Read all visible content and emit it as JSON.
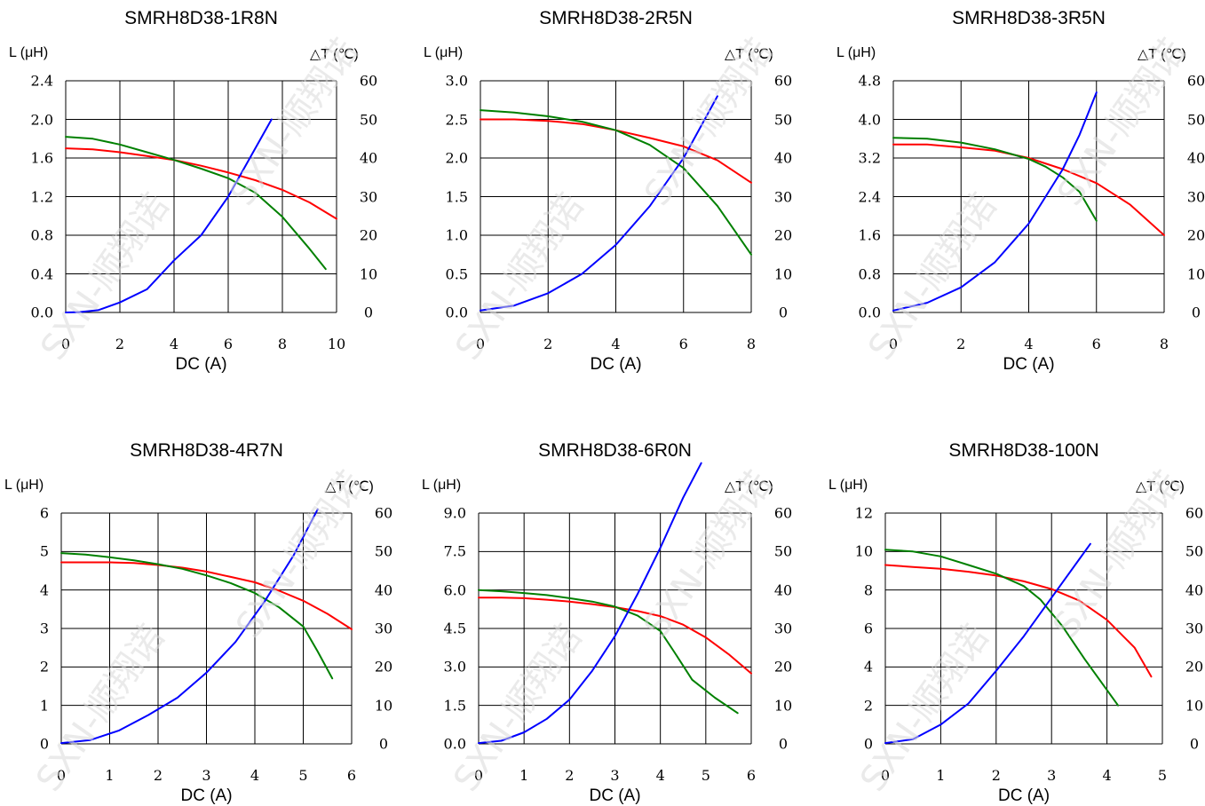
{
  "watermark_text": "SXN-顺翔诺",
  "colors": {
    "red": "#ff0000",
    "green": "#008000",
    "blue": "#0000ff",
    "grid": "#000000",
    "watermark": "#d9d9d9"
  },
  "chart_data": [
    {
      "type": "line",
      "title": "SMRH8D38-1R8N",
      "ylabel_left": "L (μH)",
      "ylabel_right": "△T (℃)",
      "xlabel": "DC (A)",
      "x_ticks": [
        "0",
        "2",
        "4",
        "6",
        "8",
        "10"
      ],
      "y_left_ticks": [
        "0.0",
        "0.4",
        "0.8",
        "1.2",
        "1.6",
        "2.0",
        "2.4"
      ],
      "y_right_ticks": [
        "0",
        "10",
        "20",
        "30",
        "40",
        "50",
        "60"
      ],
      "xlim": [
        0,
        10
      ],
      "ylim_left": [
        0,
        2.4
      ],
      "ylim_right": [
        0,
        60
      ],
      "grid": true,
      "series": [
        {
          "color": "red",
          "axis": "left",
          "x": [
            0,
            1,
            2,
            3,
            4,
            5,
            6,
            7,
            8,
            9,
            10
          ],
          "y": [
            1.7,
            1.69,
            1.66,
            1.62,
            1.58,
            1.52,
            1.45,
            1.37,
            1.27,
            1.14,
            0.97
          ]
        },
        {
          "color": "green",
          "axis": "left",
          "x": [
            0,
            1,
            2,
            3,
            4,
            5,
            6,
            7,
            8,
            9,
            9.6
          ],
          "y": [
            1.82,
            1.8,
            1.74,
            1.66,
            1.58,
            1.49,
            1.39,
            1.24,
            0.99,
            0.66,
            0.45
          ]
        },
        {
          "color": "blue",
          "axis": "right",
          "x": [
            0,
            0.5,
            1.2,
            2,
            3,
            4,
            5,
            6,
            6.8,
            7.6
          ],
          "y": [
            0,
            0.1,
            0.6,
            2.6,
            6,
            13.5,
            20,
            30,
            40,
            50
          ]
        }
      ]
    },
    {
      "type": "line",
      "title": "SMRH8D38-2R5N",
      "ylabel_left": "L (μH)",
      "ylabel_right": "△T (℃)",
      "xlabel": "DC (A)",
      "x_ticks": [
        "0",
        "2",
        "4",
        "6",
        "8"
      ],
      "y_left_ticks": [
        "0.0",
        "0.5",
        "1.0",
        "1.5",
        "2.0",
        "2.5",
        "3.0"
      ],
      "y_right_ticks": [
        "0",
        "10",
        "20",
        "30",
        "40",
        "50",
        "60"
      ],
      "xlim": [
        0,
        8
      ],
      "ylim_left": [
        0,
        3.0
      ],
      "ylim_right": [
        0,
        60
      ],
      "grid": true,
      "series": [
        {
          "color": "red",
          "axis": "left",
          "x": [
            0,
            1,
            2,
            3,
            4,
            5,
            6,
            7,
            8
          ],
          "y": [
            2.5,
            2.5,
            2.48,
            2.44,
            2.36,
            2.26,
            2.15,
            1.97,
            1.68
          ]
        },
        {
          "color": "green",
          "axis": "left",
          "x": [
            0,
            1,
            2,
            3,
            4,
            5,
            6,
            7,
            8
          ],
          "y": [
            2.62,
            2.59,
            2.54,
            2.47,
            2.36,
            2.17,
            1.87,
            1.38,
            0.75
          ]
        },
        {
          "color": "blue",
          "axis": "right",
          "x": [
            0,
            1,
            2,
            3,
            4,
            5,
            6,
            7
          ],
          "y": [
            0.5,
            1.8,
            5,
            10,
            17.5,
            27.5,
            40,
            56
          ]
        }
      ]
    },
    {
      "type": "line",
      "title": "SMRH8D38-3R5N",
      "ylabel_left": "L (μH)",
      "ylabel_right": "△T (℃)",
      "xlabel": "DC (A)",
      "x_ticks": [
        "0",
        "2",
        "4",
        "6",
        "8"
      ],
      "y_left_ticks": [
        "0.0",
        "0.8",
        "1.6",
        "2.4",
        "3.2",
        "4.0",
        "4.8"
      ],
      "y_right_ticks": [
        "0",
        "10",
        "20",
        "30",
        "40",
        "50",
        "60"
      ],
      "xlim": [
        0,
        8
      ],
      "ylim_left": [
        0,
        4.8
      ],
      "ylim_right": [
        0,
        60
      ],
      "grid": true,
      "series": [
        {
          "color": "red",
          "axis": "left",
          "x": [
            0,
            1,
            2,
            3,
            4,
            5,
            6,
            7,
            8
          ],
          "y": [
            3.48,
            3.48,
            3.42,
            3.35,
            3.2,
            2.97,
            2.68,
            2.23,
            1.6
          ]
        },
        {
          "color": "green",
          "axis": "left",
          "x": [
            0,
            1,
            2,
            3,
            4,
            4.5,
            5,
            5.5,
            6
          ],
          "y": [
            3.62,
            3.6,
            3.52,
            3.38,
            3.18,
            3.02,
            2.8,
            2.5,
            1.9
          ]
        },
        {
          "color": "blue",
          "axis": "right",
          "x": [
            0,
            1,
            2,
            3,
            4,
            5,
            5.5,
            6
          ],
          "y": [
            0.5,
            2.5,
            6.5,
            13,
            23,
            37,
            46,
            57
          ]
        }
      ]
    },
    {
      "type": "line",
      "title": "SMRH8D38-4R7N",
      "ylabel_left": "L (μH)",
      "ylabel_right": "△T (℃)",
      "xlabel": "DC (A)",
      "x_ticks": [
        "0",
        "1",
        "2",
        "3",
        "4",
        "5",
        "6"
      ],
      "y_left_ticks": [
        "0",
        "1",
        "2",
        "3",
        "4",
        "5",
        "6"
      ],
      "y_right_ticks": [
        "0",
        "10",
        "20",
        "30",
        "40",
        "50",
        "60"
      ],
      "xlim": [
        0,
        6
      ],
      "ylim_left": [
        0,
        6
      ],
      "ylim_right": [
        0,
        60
      ],
      "grid": true,
      "series": [
        {
          "color": "red",
          "axis": "left",
          "x": [
            0,
            0.5,
            1,
            1.5,
            2,
            2.5,
            3,
            3.5,
            4,
            4.5,
            5,
            5.5,
            6
          ],
          "y": [
            4.72,
            4.72,
            4.72,
            4.7,
            4.65,
            4.58,
            4.48,
            4.34,
            4.2,
            3.98,
            3.72,
            3.38,
            2.98
          ]
        },
        {
          "color": "green",
          "axis": "left",
          "x": [
            0,
            0.5,
            1,
            1.5,
            2,
            2.5,
            3,
            3.5,
            4,
            4.5,
            5,
            5.3,
            5.6
          ],
          "y": [
            4.96,
            4.92,
            4.85,
            4.77,
            4.67,
            4.55,
            4.38,
            4.18,
            3.92,
            3.55,
            3.05,
            2.4,
            1.7
          ]
        },
        {
          "color": "blue",
          "axis": "right",
          "x": [
            0,
            0.6,
            1.2,
            1.8,
            2.4,
            3,
            3.6,
            4.2,
            4.8,
            5.3
          ],
          "y": [
            0.2,
            1,
            3.5,
            7.5,
            12,
            18.5,
            26.5,
            37,
            49,
            61
          ]
        }
      ]
    },
    {
      "type": "line",
      "title": "SMRH8D38-6R0N",
      "ylabel_left": "L (μH)",
      "ylabel_right": "△T (℃)",
      "xlabel": "DC (A)",
      "x_ticks": [
        "0",
        "1",
        "2",
        "3",
        "4",
        "5",
        "6"
      ],
      "y_left_ticks": [
        "0.0",
        "1.5",
        "3.0",
        "4.5",
        "6.0",
        "7.5",
        "9.0"
      ],
      "y_right_ticks": [
        "0",
        "10",
        "20",
        "30",
        "40",
        "50",
        "60"
      ],
      "xlim": [
        0,
        6
      ],
      "ylim_left": [
        0,
        9.0
      ],
      "ylim_right": [
        0,
        60
      ],
      "grid": true,
      "series": [
        {
          "color": "red",
          "axis": "left",
          "x": [
            0,
            0.5,
            1,
            1.5,
            2,
            2.5,
            3,
            3.5,
            4,
            4.5,
            5,
            5.5,
            6
          ],
          "y": [
            5.7,
            5.7,
            5.68,
            5.62,
            5.55,
            5.45,
            5.33,
            5.18,
            4.98,
            4.65,
            4.15,
            3.5,
            2.75
          ]
        },
        {
          "color": "green",
          "axis": "left",
          "x": [
            0,
            0.5,
            1,
            1.5,
            2,
            2.5,
            3,
            3.5,
            4,
            4.3,
            4.7,
            5.2,
            5.7
          ],
          "y": [
            6.0,
            5.95,
            5.88,
            5.8,
            5.68,
            5.55,
            5.35,
            5.0,
            4.4,
            3.6,
            2.5,
            1.8,
            1.2
          ]
        },
        {
          "color": "blue",
          "axis": "right",
          "x": [
            0,
            0.5,
            1,
            1.5,
            2,
            2.5,
            3,
            3.5,
            4,
            4.5,
            4.9
          ],
          "y": [
            0.2,
            0.8,
            3,
            6.5,
            11.5,
            19,
            28,
            39,
            51,
            64,
            73
          ]
        }
      ]
    },
    {
      "type": "line",
      "title": "SMRH8D38-100N",
      "ylabel_left": "L (μH)",
      "ylabel_right": "△T (℃)",
      "xlabel": "DC (A)",
      "x_ticks": [
        "0",
        "1",
        "2",
        "3",
        "4",
        "5"
      ],
      "y_left_ticks": [
        "0",
        "2",
        "4",
        "6",
        "8",
        "10",
        "12"
      ],
      "y_right_ticks": [
        "0",
        "10",
        "20",
        "30",
        "40",
        "50",
        "60"
      ],
      "xlim": [
        0,
        5
      ],
      "ylim_left": [
        0,
        12
      ],
      "ylim_right": [
        0,
        60
      ],
      "grid": true,
      "series": [
        {
          "color": "red",
          "axis": "left",
          "x": [
            0,
            0.5,
            1,
            1.5,
            2,
            2.5,
            3,
            3.5,
            4,
            4.5,
            4.8
          ],
          "y": [
            9.3,
            9.2,
            9.1,
            8.95,
            8.75,
            8.45,
            8.05,
            7.45,
            6.45,
            5.0,
            3.5
          ]
        },
        {
          "color": "green",
          "axis": "left",
          "x": [
            0,
            0.5,
            1,
            1.5,
            2,
            2.5,
            2.8,
            3.2,
            3.6,
            4.2
          ],
          "y": [
            10.1,
            10.0,
            9.75,
            9.3,
            8.85,
            8.2,
            7.5,
            6.1,
            4.4,
            2.0
          ]
        },
        {
          "color": "blue",
          "axis": "right",
          "x": [
            0,
            0.5,
            1,
            1.5,
            2,
            2.5,
            3,
            3.5,
            3.7
          ],
          "y": [
            0.2,
            1.2,
            5,
            10.5,
            19,
            28,
            38,
            48,
            52
          ]
        }
      ]
    }
  ]
}
